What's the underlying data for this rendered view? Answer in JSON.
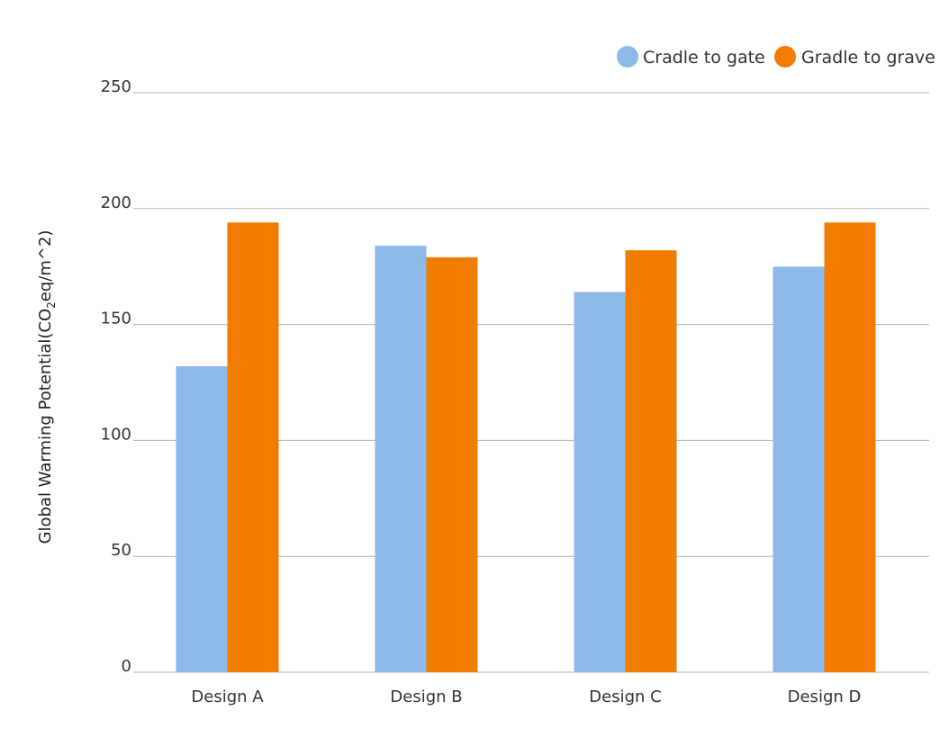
{
  "chart_data": {
    "type": "bar",
    "title": "",
    "xlabel": "",
    "ylabel": {
      "prefix": "Global Warming Potential(CO",
      "subscript": "2",
      "suffix": "eq/m^2)"
    },
    "categories": [
      "Design A",
      "Design B",
      "Design C",
      "Design D"
    ],
    "series": [
      {
        "name": "Cradle to gate",
        "color": "#8DB9E8",
        "values": [
          132,
          184,
          164,
          175
        ]
      },
      {
        "name": "Gradle to grave",
        "color": "#F07D00",
        "values": [
          194,
          179,
          182,
          194
        ]
      }
    ],
    "ylim": [
      0,
      250
    ],
    "yticks": [
      "0",
      "50",
      "100",
      "150",
      "200",
      "250"
    ],
    "grid": true,
    "gridColor": "#B3B3B3",
    "legend": "top-right"
  }
}
